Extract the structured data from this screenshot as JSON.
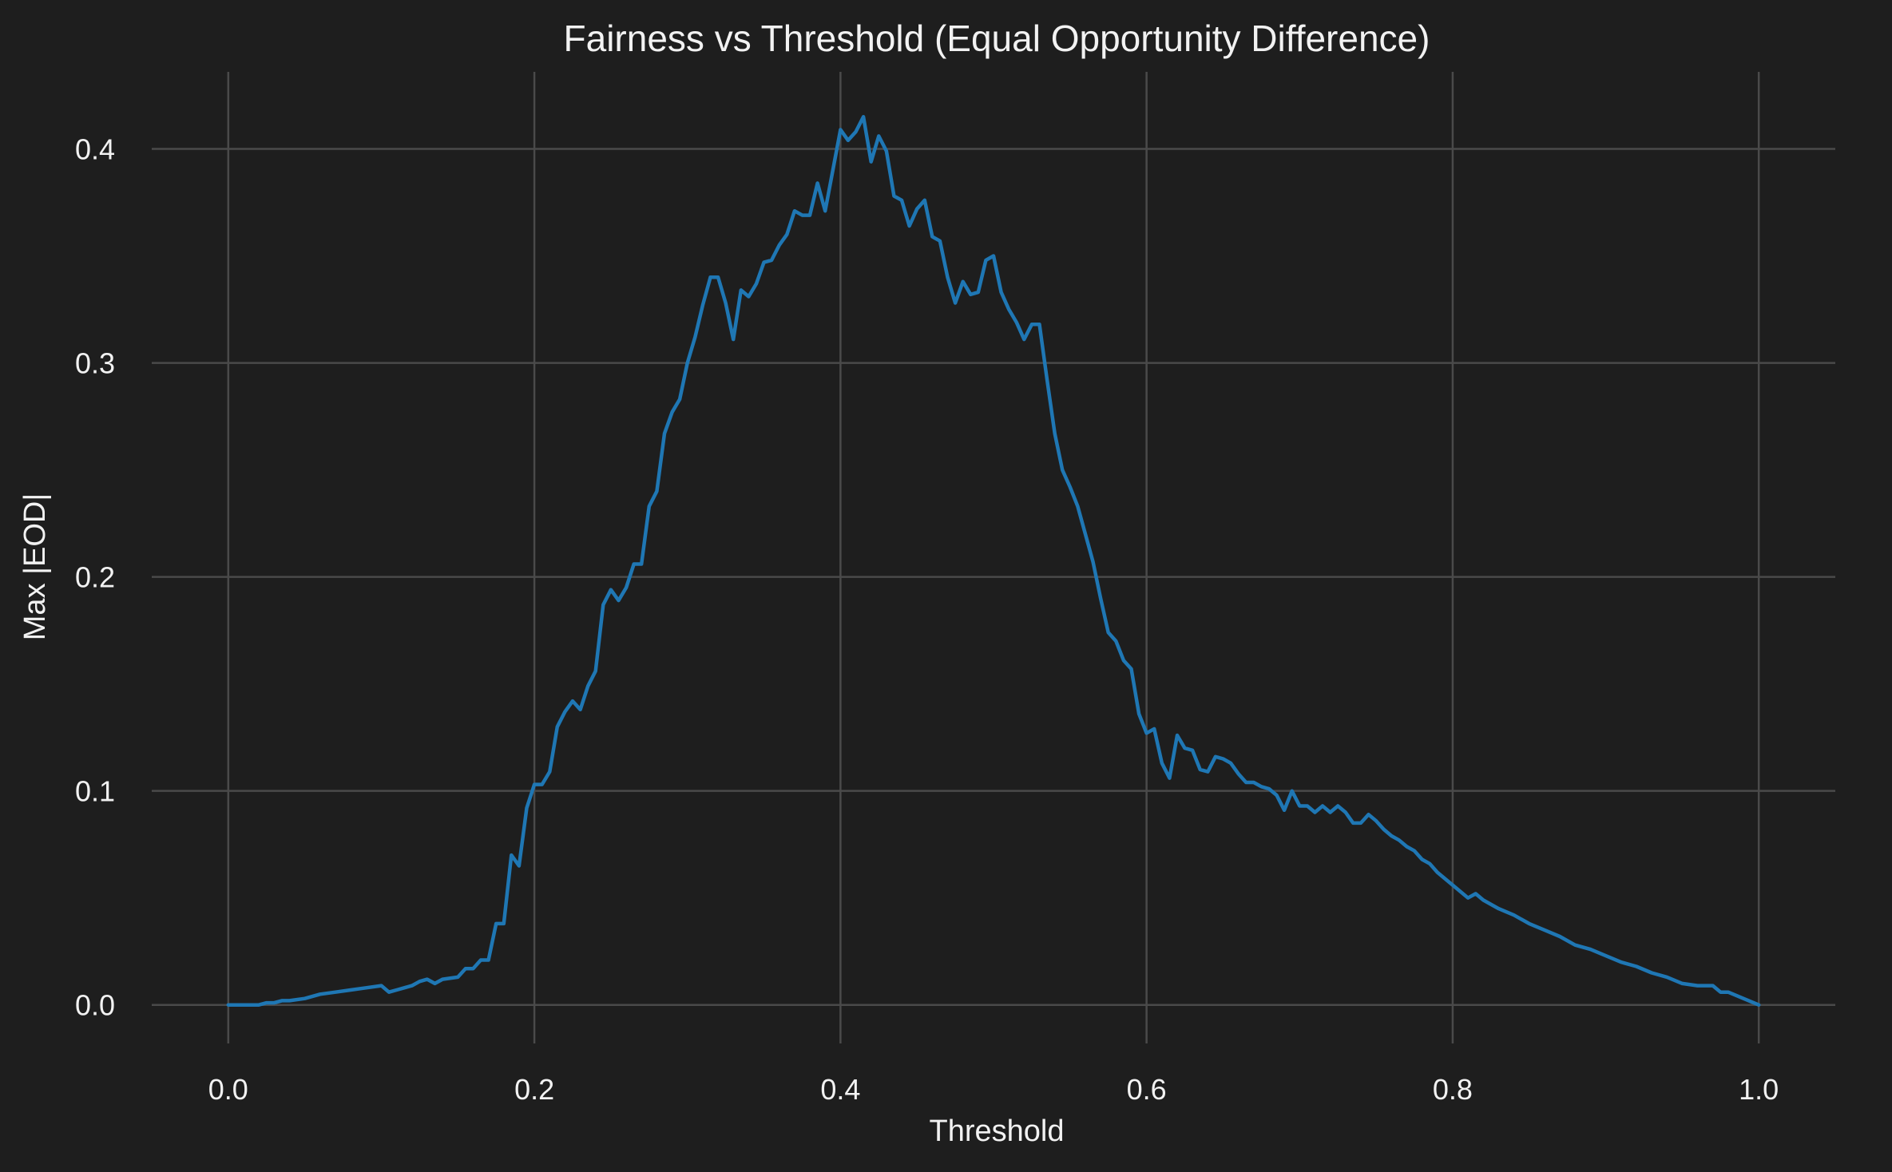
{
  "colors": {
    "background": "#1e1e1e",
    "grid": "#4a4a4a",
    "text": "#f2f2f2",
    "series": "#1f77b4"
  },
  "chart_data": {
    "type": "line",
    "title": "Fairness vs Threshold (Equal Opportunity Difference)",
    "xlabel": "Threshold",
    "ylabel": "Max |EOD|",
    "xlim": [
      -0.05,
      1.05
    ],
    "ylim": [
      -0.018,
      0.436
    ],
    "x_ticks": [
      0.0,
      0.2,
      0.4,
      0.6,
      0.8,
      1.0
    ],
    "x_tick_labels": [
      "0.0",
      "0.2",
      "0.4",
      "0.6",
      "0.8",
      "1.0"
    ],
    "y_ticks": [
      0.0,
      0.1,
      0.2,
      0.3,
      0.4
    ],
    "y_tick_labels": [
      "0.0",
      "0.1",
      "0.2",
      "0.3",
      "0.4"
    ],
    "grid": true,
    "legend": "none",
    "series": [
      {
        "x": [
          0.0,
          0.02,
          0.025,
          0.03,
          0.035,
          0.04,
          0.05,
          0.06,
          0.07,
          0.08,
          0.09,
          0.1,
          0.105,
          0.11,
          0.12,
          0.125,
          0.13,
          0.135,
          0.14,
          0.15,
          0.155,
          0.16,
          0.165,
          0.17,
          0.175,
          0.18,
          0.185,
          0.19,
          0.195,
          0.2,
          0.205,
          0.21,
          0.215,
          0.22,
          0.225,
          0.23,
          0.235,
          0.24,
          0.245,
          0.25,
          0.255,
          0.26,
          0.265,
          0.27,
          0.275,
          0.28,
          0.285,
          0.29,
          0.295,
          0.3,
          0.305,
          0.31,
          0.315,
          0.32,
          0.325,
          0.33,
          0.335,
          0.34,
          0.345,
          0.35,
          0.355,
          0.36,
          0.365,
          0.37,
          0.375,
          0.38,
          0.385,
          0.39,
          0.395,
          0.4,
          0.405,
          0.41,
          0.415,
          0.42,
          0.425,
          0.43,
          0.435,
          0.44,
          0.445,
          0.45,
          0.455,
          0.46,
          0.465,
          0.47,
          0.475,
          0.48,
          0.485,
          0.49,
          0.495,
          0.5,
          0.505,
          0.51,
          0.515,
          0.52,
          0.525,
          0.53,
          0.535,
          0.54,
          0.545,
          0.55,
          0.555,
          0.56,
          0.565,
          0.57,
          0.575,
          0.58,
          0.585,
          0.59,
          0.595,
          0.6,
          0.605,
          0.61,
          0.615,
          0.62,
          0.625,
          0.63,
          0.635,
          0.64,
          0.645,
          0.65,
          0.655,
          0.66,
          0.665,
          0.67,
          0.675,
          0.68,
          0.685,
          0.69,
          0.695,
          0.7,
          0.705,
          0.71,
          0.715,
          0.72,
          0.725,
          0.73,
          0.735,
          0.74,
          0.745,
          0.75,
          0.755,
          0.76,
          0.765,
          0.77,
          0.775,
          0.78,
          0.785,
          0.79,
          0.8,
          0.81,
          0.815,
          0.82,
          0.83,
          0.84,
          0.85,
          0.86,
          0.87,
          0.88,
          0.89,
          0.9,
          0.91,
          0.92,
          0.93,
          0.94,
          0.95,
          0.96,
          0.97,
          0.975,
          0.98,
          0.99,
          1.0
        ],
        "y": [
          0.0,
          0.0,
          0.001,
          0.001,
          0.002,
          0.002,
          0.003,
          0.005,
          0.006,
          0.007,
          0.008,
          0.009,
          0.006,
          0.007,
          0.009,
          0.011,
          0.012,
          0.01,
          0.012,
          0.013,
          0.017,
          0.017,
          0.021,
          0.021,
          0.038,
          0.038,
          0.07,
          0.065,
          0.092,
          0.103,
          0.103,
          0.109,
          0.13,
          0.137,
          0.142,
          0.138,
          0.149,
          0.156,
          0.187,
          0.194,
          0.189,
          0.195,
          0.206,
          0.206,
          0.233,
          0.24,
          0.267,
          0.277,
          0.283,
          0.3,
          0.312,
          0.327,
          0.34,
          0.34,
          0.328,
          0.311,
          0.334,
          0.331,
          0.337,
          0.347,
          0.348,
          0.355,
          0.36,
          0.371,
          0.369,
          0.369,
          0.384,
          0.371,
          0.39,
          0.409,
          0.404,
          0.408,
          0.415,
          0.394,
          0.406,
          0.399,
          0.378,
          0.376,
          0.364,
          0.372,
          0.376,
          0.359,
          0.357,
          0.34,
          0.328,
          0.338,
          0.332,
          0.333,
          0.348,
          0.35,
          0.333,
          0.325,
          0.319,
          0.311,
          0.318,
          0.318,
          0.292,
          0.267,
          0.25,
          0.242,
          0.233,
          0.22,
          0.207,
          0.19,
          0.174,
          0.17,
          0.161,
          0.157,
          0.136,
          0.127,
          0.129,
          0.113,
          0.106,
          0.126,
          0.12,
          0.119,
          0.11,
          0.109,
          0.116,
          0.115,
          0.113,
          0.108,
          0.104,
          0.104,
          0.102,
          0.101,
          0.098,
          0.091,
          0.1,
          0.093,
          0.093,
          0.09,
          0.093,
          0.09,
          0.093,
          0.09,
          0.085,
          0.085,
          0.089,
          0.086,
          0.082,
          0.079,
          0.077,
          0.074,
          0.072,
          0.068,
          0.066,
          0.062,
          0.056,
          0.05,
          0.052,
          0.049,
          0.045,
          0.042,
          0.038,
          0.035,
          0.032,
          0.028,
          0.026,
          0.023,
          0.02,
          0.018,
          0.015,
          0.013,
          0.01,
          0.009,
          0.009,
          0.006,
          0.006,
          0.003,
          0.0
        ]
      }
    ]
  }
}
